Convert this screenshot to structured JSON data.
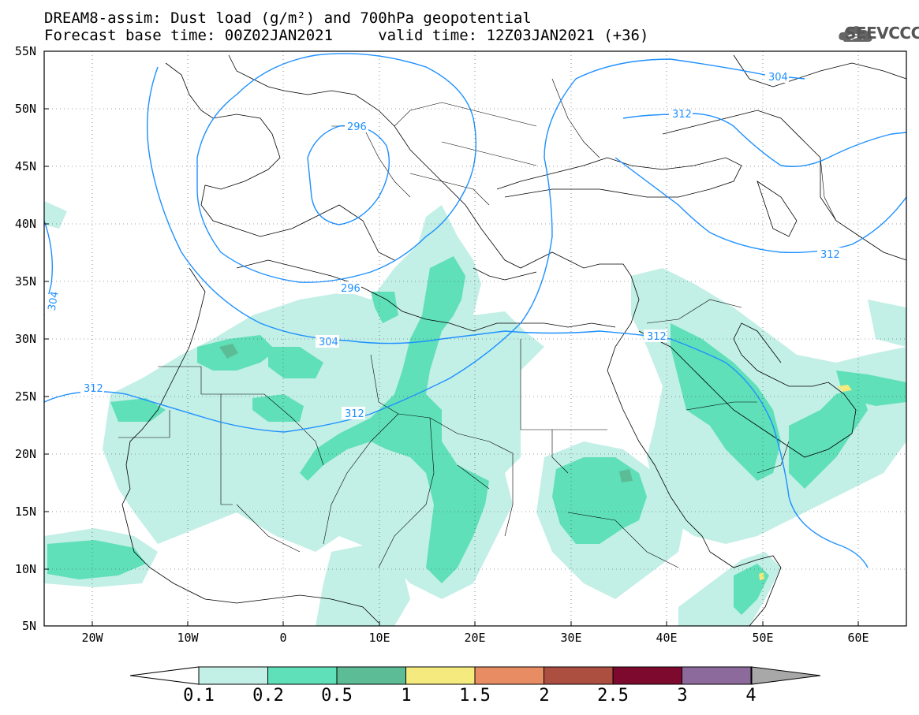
{
  "title_line1": "DREAM8-assim: Dust load (g/m²) and 700hPa geopotential",
  "title_line2": "Forecast base time: 00Z02JAN2021     valid time: 12Z03JAN2021 (+36)",
  "logo_text": "SEEVCCC",
  "lat_labels": [
    "55N",
    "50N",
    "45N",
    "40N",
    "35N",
    "30N",
    "25N",
    "20N",
    "15N",
    "10N",
    "5N"
  ],
  "lon_labels": [
    "20W",
    "10W",
    "0",
    "10E",
    "20E",
    "30E",
    "40E",
    "50E",
    "60E"
  ],
  "contour_labels": [
    "304",
    "312",
    "312",
    "296",
    "296",
    "304",
    "312",
    "312",
    "304",
    "312"
  ],
  "colorbar": {
    "labels": [
      "0.1",
      "0.2",
      "0.5",
      "1",
      "1.5",
      "2",
      "2.5",
      "3",
      "4"
    ],
    "colors": [
      "#c2efe6",
      "#5fe0b8",
      "#5cbc96",
      "#f4ea7d",
      "#e88c64",
      "#ac4e40",
      "#7d0a2e",
      "#8c6a9c",
      "#a8a8a8"
    ]
  },
  "colors": {
    "contour": "#1e90ff",
    "dust_low": "#c2efe6",
    "dust_mid": "#5fe0b8",
    "dust_high": "#5cbc96",
    "dust_peak": "#f4ea7d"
  }
}
